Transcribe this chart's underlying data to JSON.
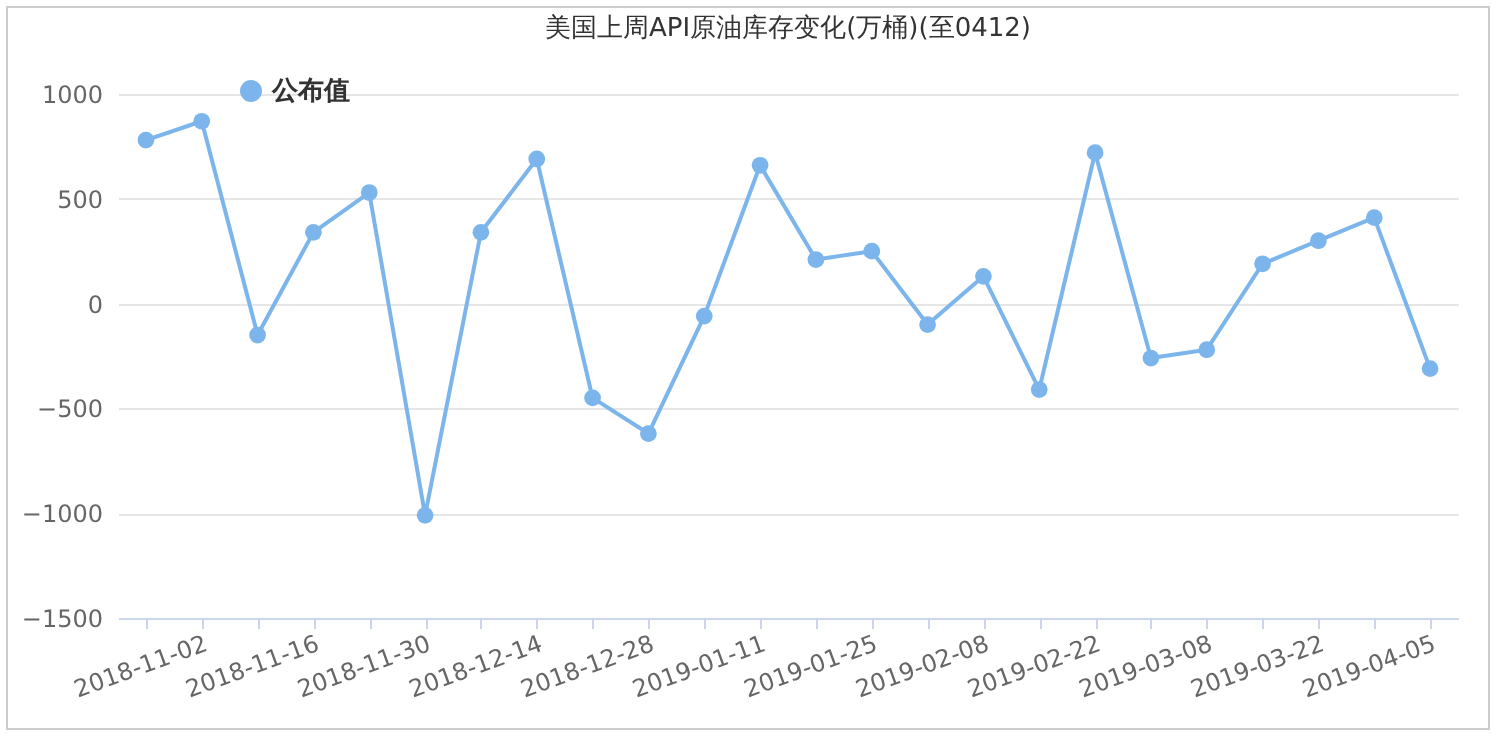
{
  "chart_data": {
    "type": "line",
    "title": "美国上周API原油库存变化(万桶)(至0412)",
    "categories": [
      null,
      "2018-11-02",
      null,
      "2018-11-16",
      null,
      "2018-11-30",
      null,
      "2018-12-14",
      null,
      "2018-12-28",
      null,
      "2019-01-11",
      null,
      "2019-01-25",
      null,
      "2019-02-08",
      null,
      "2019-02-22",
      null,
      "2019-03-08",
      null,
      "2019-03-22",
      null,
      "2019-04-05"
    ],
    "series": [
      {
        "name": "公布值",
        "color": "#7cb5ec",
        "values": [
          780,
          870,
          -150,
          340,
          530,
          -1010,
          340,
          690,
          -450,
          -620,
          -60,
          660,
          210,
          250,
          -100,
          130,
          -410,
          720,
          -260,
          -220,
          190,
          300,
          410,
          -310
        ]
      }
    ],
    "ylim": [
      -1500,
      1000
    ],
    "yticks": [
      -1500,
      -1000,
      -500,
      0,
      500,
      1000
    ],
    "grid": "y",
    "legend": "top left",
    "marker": "circle",
    "line_style": "solid"
  }
}
